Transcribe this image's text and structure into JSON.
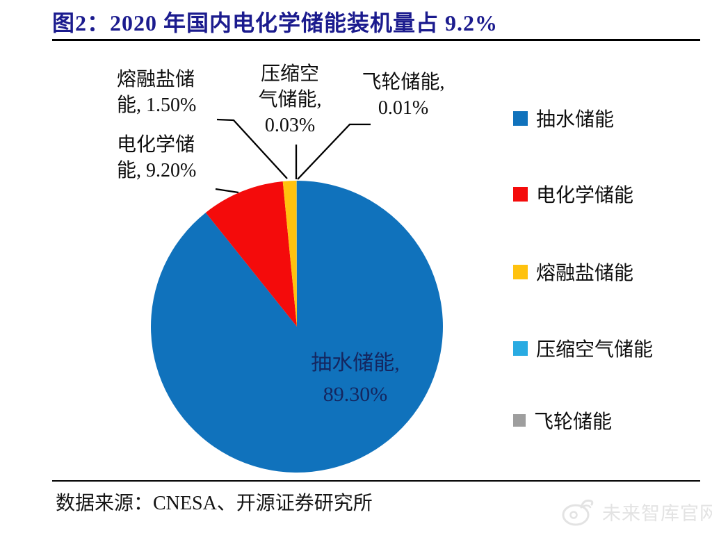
{
  "title": "图2：2020 年国内电化学储能装机量占 9.2%",
  "chart_data": {
    "type": "pie",
    "title": "2020 年国内电化学储能装机量占 9.2%",
    "unit": "%",
    "direction": "clockwise",
    "start_angle": "12-oclock",
    "legend_position": "right",
    "series": [
      {
        "name": "抽水储能",
        "value": 89.3,
        "color": "#1072BC"
      },
      {
        "name": "电化学储能",
        "value": 9.2,
        "color": "#F40B0B"
      },
      {
        "name": "熔融盐储能",
        "value": 1.5,
        "color": "#FFC20E"
      },
      {
        "name": "压缩空气储能",
        "value": 0.03,
        "color": "#29ABE2"
      },
      {
        "name": "飞轮储能",
        "value": 0.01,
        "color": "#9E9E9E"
      }
    ]
  },
  "callouts": {
    "molten": {
      "line1": "熔融盐储",
      "line2": "能, 1.50%"
    },
    "compressed": {
      "line1": "压缩空",
      "line2": "气储能,",
      "line3": "0.03%"
    },
    "flywheel": {
      "line1": "飞轮储能,",
      "line2": "0.01%"
    },
    "electro": {
      "line1": "电化学储",
      "line2": "能, 9.20%"
    }
  },
  "pie_label": {
    "line1": "抽水储能,",
    "line2": "89.30%"
  },
  "footer": {
    "source": "数据来源：CNESA、开源证券研究所"
  },
  "watermark": {
    "text": "未来智库官网"
  }
}
